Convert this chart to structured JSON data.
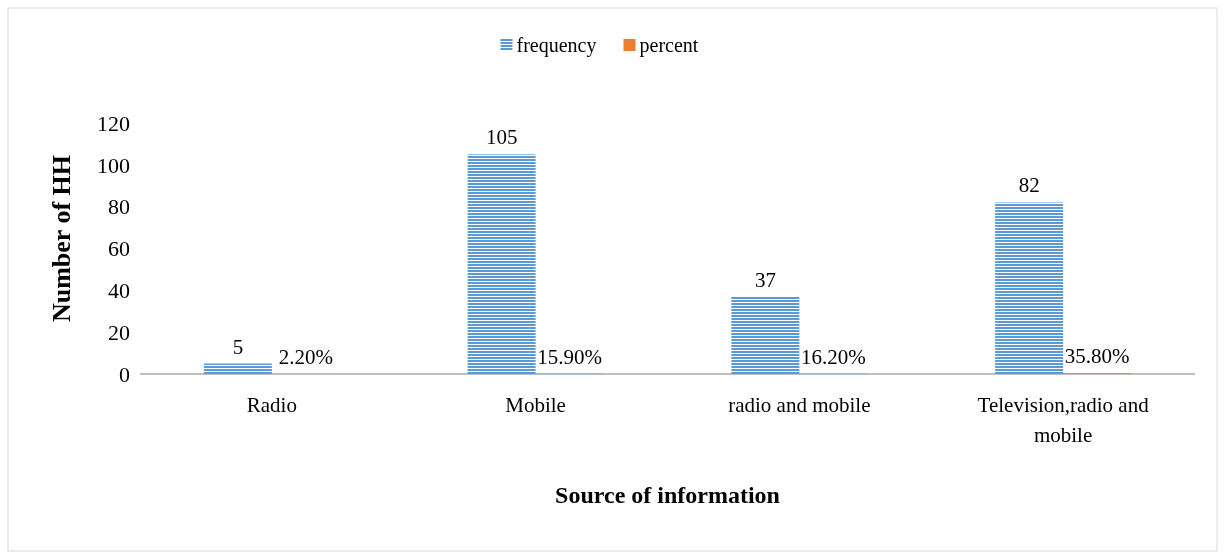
{
  "chart_data": {
    "type": "bar",
    "xlabel": "Source of information",
    "ylabel": "Number of HH",
    "categories": [
      "Radio",
      "Mobile",
      "radio and mobile",
      "Television,radio and mobile"
    ],
    "series": [
      {
        "name": "frequency",
        "color": "#5b9bd5",
        "values": [
          5,
          105,
          37,
          82
        ],
        "value_labels": [
          "5",
          "105",
          "37",
          "82"
        ]
      },
      {
        "name": "percent",
        "color": "#ed7d31",
        "values": [
          0.022,
          0.159,
          0.162,
          0.358
        ],
        "value_labels": [
          "2.20%",
          "15.90%",
          "16.20%",
          "35.80%"
        ]
      }
    ],
    "ylim": [
      0,
      120
    ],
    "yticks": [
      0,
      20,
      40,
      60,
      80,
      100,
      120
    ],
    "grid": false,
    "legend": "top"
  }
}
